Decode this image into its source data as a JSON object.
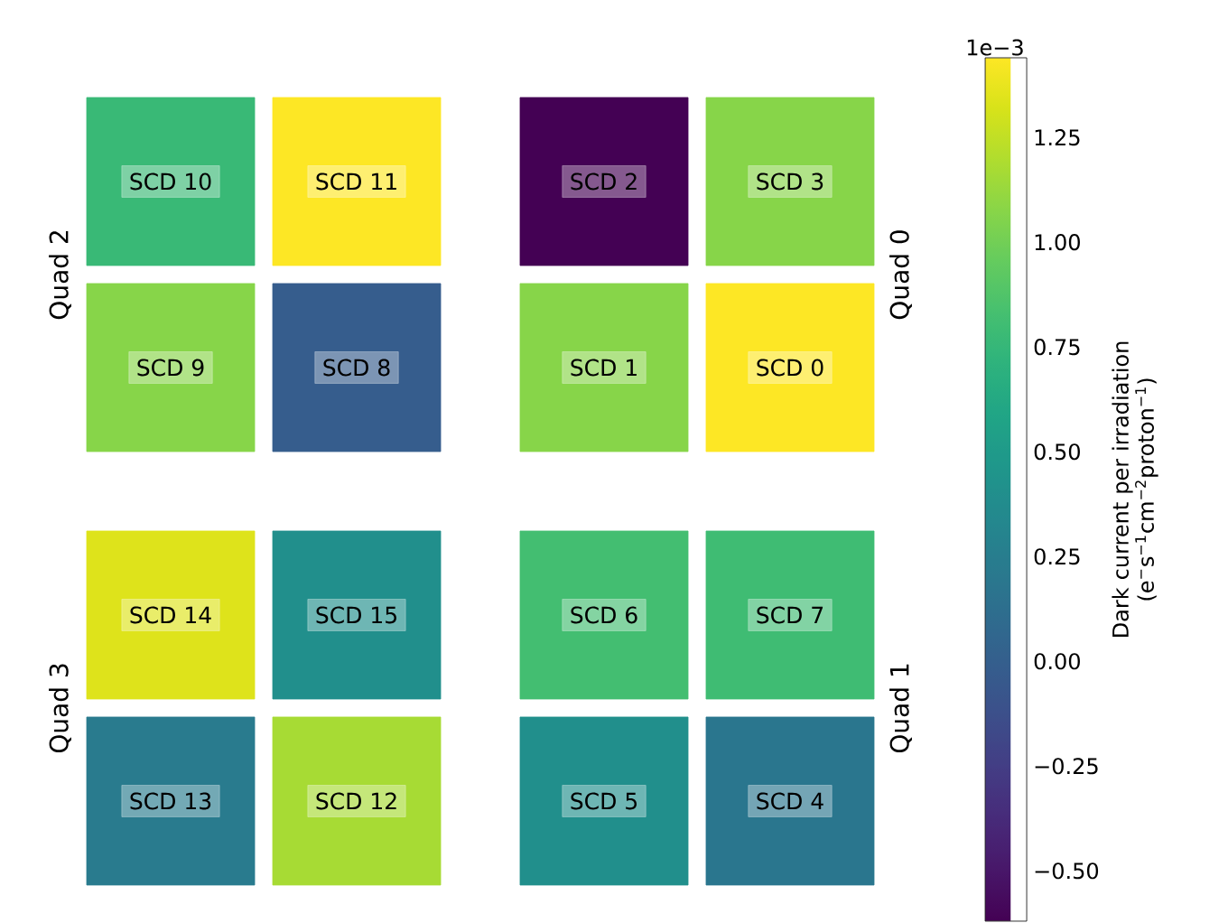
{
  "chart_data": {
    "type": "heatmap",
    "categories": [
      null,
      null,
      null,
      null
    ],
    "y_categories": [
      null,
      null,
      null,
      null
    ],
    "clim": [
      -0.62,
      1.44
    ],
    "cells": [
      [
        0.77,
        1.44,
        -0.62,
        1.07
      ],
      [
        1.07,
        -0.02,
        1.07,
        1.44
      ],
      [
        1.34,
        0.4,
        0.82,
        0.8
      ],
      [
        0.23,
        1.17,
        0.4,
        0.19
      ]
    ],
    "cell_labels": [
      [
        "SCD 10",
        "SCD 11",
        "SCD 2",
        "SCD 3"
      ],
      [
        "SCD 9",
        "SCD 8",
        "SCD 1",
        "SCD 0"
      ],
      [
        "SCD 14",
        "SCD 15",
        "SCD 6",
        "SCD 7"
      ],
      [
        "SCD 13",
        "SCD 12",
        "SCD 5",
        "SCD 4"
      ]
    ],
    "clabel": "Dark current per irradiation (e$^{−}$s$^{−1}$cm$^{−2}$proton$^{−1}$)",
    "cticks": [
      {
        "value": -0.5,
        "label": "−0.50"
      },
      {
        "value": -0.25,
        "label": "−0.25"
      },
      {
        "value": 0,
        "label": "0.00"
      },
      {
        "value": 0.25,
        "label": "0.25"
      },
      {
        "value": 0.5,
        "label": "0.50"
      },
      {
        "value": 0.75,
        "label": "0.75"
      },
      {
        "value": 1,
        "label": "1.00"
      },
      {
        "value": 1.25,
        "label": "1.25"
      }
    ],
    "annotations": [
      "Quad 2",
      "Quad 0",
      "Quad 3",
      "Quad 1",
      "1e−3"
    ]
  }
}
